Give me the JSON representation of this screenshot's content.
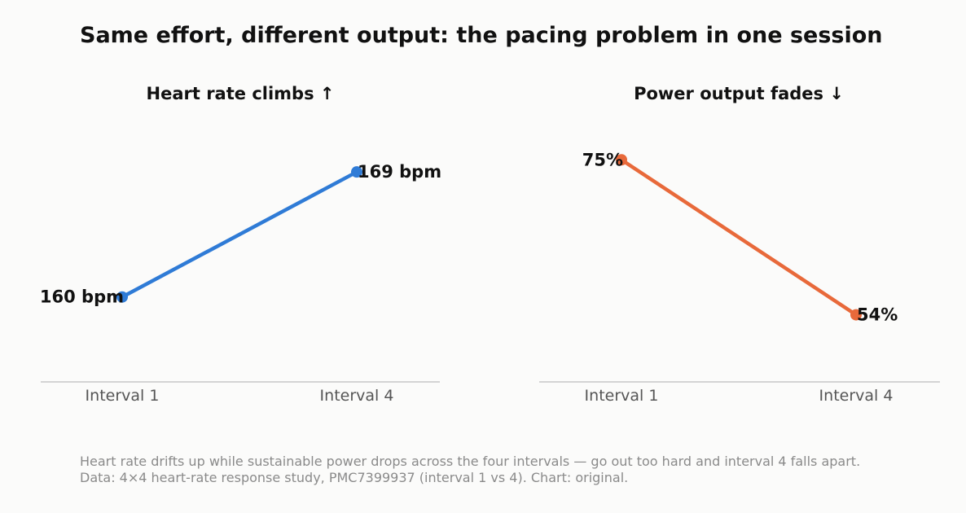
{
  "title": "Same effort, different output: the pacing problem in one session",
  "caption": {
    "line1": "Heart rate drifts up while sustainable power drops across the four intervals — go out too hard and interval 4 falls apart.",
    "line2": "Data: 4×4 heart-rate response study, PMC7399937 (interval 1 vs 4). Chart: original."
  },
  "chart_data": [
    {
      "type": "line",
      "title": "Heart rate climbs ↑",
      "categories": [
        "Interval 1",
        "Interval 4"
      ],
      "values": [
        160,
        169
      ],
      "labels": [
        "160 bpm",
        "169 bpm"
      ],
      "color": "#2f7bd6",
      "ylim": [
        155,
        172
      ],
      "grid": false
    },
    {
      "type": "line",
      "title": "Power output fades ↓",
      "categories": [
        "Interval 1",
        "Interval 4"
      ],
      "values": [
        75,
        54
      ],
      "labels": [
        "75%",
        "54%"
      ],
      "color": "#e8693a",
      "ylim": [
        47,
        79
      ],
      "grid": false
    }
  ]
}
